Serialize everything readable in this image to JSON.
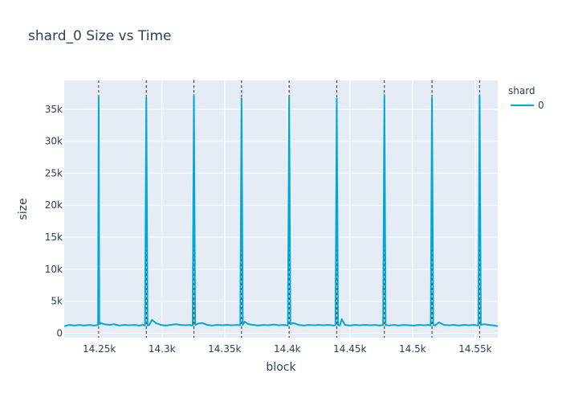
{
  "chart_data": {
    "type": "line",
    "title": "shard_0 Size vs Time",
    "xlabel": "block",
    "ylabel": "size",
    "legend_title": "shard",
    "xlim": [
      14222000,
      14568000
    ],
    "ylim": [
      -700,
      39500
    ],
    "x_ticks": [
      {
        "value": 14250000,
        "label": "14.25k"
      },
      {
        "value": 14300000,
        "label": "14.3k"
      },
      {
        "value": 14350000,
        "label": "14.35k"
      },
      {
        "value": 14400000,
        "label": "14.4k"
      },
      {
        "value": 14450000,
        "label": "14.45k"
      },
      {
        "value": 14500000,
        "label": "14.5k"
      },
      {
        "value": 14550000,
        "label": "14.55k"
      }
    ],
    "y_ticks": [
      {
        "value": 0,
        "label": "0"
      },
      {
        "value": 5000,
        "label": "5k"
      },
      {
        "value": 10000,
        "label": "10k"
      },
      {
        "value": 15000,
        "label": "15k"
      },
      {
        "value": 20000,
        "label": "20k"
      },
      {
        "value": 25000,
        "label": "25k"
      },
      {
        "value": 30000,
        "label": "30k"
      },
      {
        "value": 35000,
        "label": "35k"
      }
    ],
    "vlines": [
      14249500,
      14287500,
      14325500,
      14363500,
      14401500,
      14439500,
      14477500,
      14515500,
      14553500
    ],
    "series": [
      {
        "name": "0",
        "color": "#00a8d8",
        "x": [
          14222000,
          14226000,
          14230000,
          14234000,
          14238000,
          14242000,
          14246000,
          14248000,
          14249000,
          14249500,
          14250000,
          14251000,
          14254000,
          14258000,
          14262000,
          14266000,
          14270000,
          14274000,
          14278000,
          14282000,
          14285000,
          14286500,
          14287500,
          14288500,
          14290000,
          14292000,
          14295000,
          14299000,
          14303000,
          14307000,
          14311000,
          14315000,
          14319000,
          14322000,
          14324500,
          14325500,
          14326500,
          14329000,
          14332000,
          14336000,
          14340000,
          14344000,
          14348000,
          14352000,
          14356000,
          14360000,
          14362500,
          14363500,
          14364500,
          14366000,
          14369000,
          14373000,
          14377000,
          14381000,
          14385000,
          14389000,
          14393000,
          14397000,
          14400500,
          14401500,
          14402500,
          14405000,
          14409000,
          14413000,
          14417000,
          14421000,
          14425000,
          14429000,
          14433000,
          14437000,
          14438500,
          14439500,
          14440500,
          14442000,
          14443500,
          14446000,
          14450000,
          14454000,
          14458000,
          14462000,
          14466000,
          14470000,
          14474000,
          14476500,
          14477500,
          14478500,
          14481000,
          14485000,
          14489000,
          14493000,
          14497000,
          14501000,
          14505000,
          14509000,
          14513000,
          14514500,
          14515500,
          14516500,
          14518000,
          14521000,
          14525000,
          14529000,
          14533000,
          14537000,
          14541000,
          14545000,
          14549000,
          14552500,
          14553500,
          14554500,
          14557000,
          14561000,
          14565000,
          14568000
        ],
        "y": [
          1100,
          1300,
          1200,
          1300,
          1200,
          1300,
          1200,
          1250,
          1300,
          37000,
          1400,
          1600,
          1400,
          1300,
          1400,
          1200,
          1300,
          1250,
          1300,
          1200,
          1300,
          1200,
          36800,
          1200,
          1300,
          2100,
          1600,
          1300,
          1200,
          1300,
          1400,
          1300,
          1250,
          1300,
          1200,
          37200,
          1300,
          1500,
          1600,
          1300,
          1200,
          1300,
          1250,
          1300,
          1250,
          1300,
          1250,
          36700,
          1300,
          1800,
          1400,
          1300,
          1200,
          1300,
          1250,
          1350,
          1250,
          1300,
          1200,
          37000,
          1400,
          1600,
          1300,
          1200,
          1300,
          1250,
          1300,
          1250,
          1300,
          1200,
          1250,
          36700,
          1300,
          1200,
          2200,
          1300,
          1200,
          1300,
          1250,
          1300,
          1250,
          1300,
          1200,
          1300,
          37200,
          1300,
          1200,
          1300,
          1200,
          1300,
          1250,
          1200,
          1300,
          1250,
          1300,
          1200,
          36900,
          1300,
          1200,
          1700,
          1300,
          1250,
          1300,
          1200,
          1300,
          1250,
          1300,
          1200,
          37200,
          1300,
          1400,
          1300,
          1200,
          1100
        ]
      }
    ]
  },
  "colors": {
    "plot_bg": "#e5ecf6",
    "grid": "#ffffff",
    "vline": "#2a2a2a",
    "text": "#2a3f5f"
  }
}
